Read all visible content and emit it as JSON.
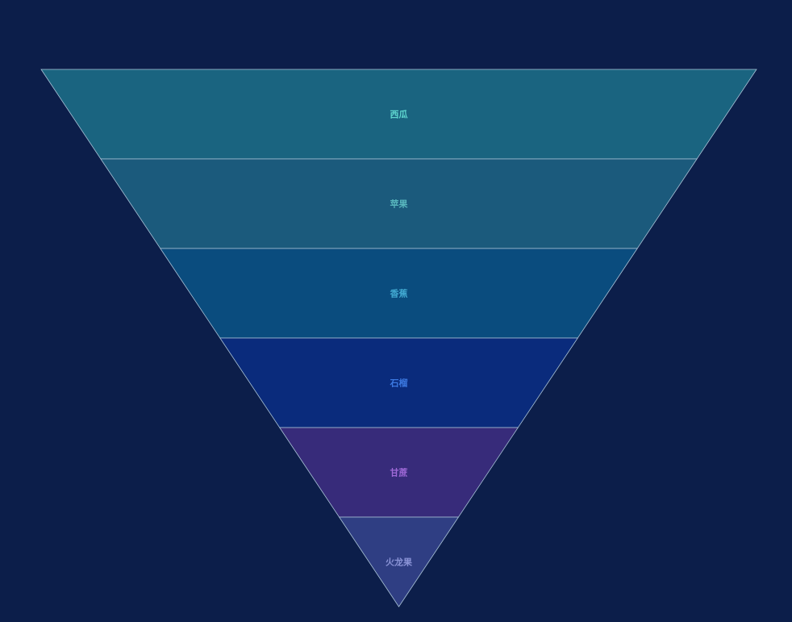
{
  "background": "#0c1e4a",
  "chart_data": {
    "type": "funnel",
    "sort": "descending",
    "segment_border_color": "#a9c2d6",
    "stages": [
      {
        "label": "西瓜",
        "fill": "#1a6480",
        "label_color": "#5fd6cf"
      },
      {
        "label": "苹果",
        "fill": "#1b5a7c",
        "label_color": "#58b6bd"
      },
      {
        "label": "香蕉",
        "fill": "#0a4c7e",
        "label_color": "#41a8d0"
      },
      {
        "label": "石榴",
        "fill": "#0a2b7c",
        "label_color": "#3b78e0"
      },
      {
        "label": "甘蔗",
        "fill": "#372b7a",
        "label_color": "#a06ad8"
      },
      {
        "label": "火龙果",
        "fill": "#2f3e83",
        "label_color": "#8a93d6"
      }
    ]
  }
}
